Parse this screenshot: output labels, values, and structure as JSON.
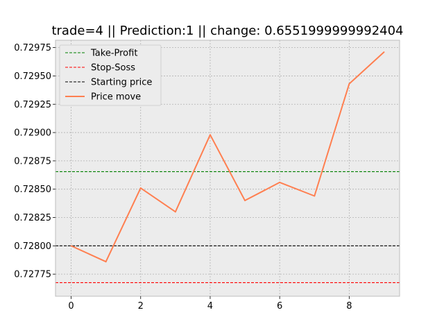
{
  "chart_data": {
    "type": "line",
    "title": "trade=4 || Prediction:1 || change: 0.6551999999992404",
    "xlabel": "",
    "ylabel": "",
    "xlim": [
      -0.45,
      9.45
    ],
    "ylim": [
      0.727555,
      0.729815
    ],
    "xticks": [
      0,
      2,
      4,
      6,
      8
    ],
    "xtick_labels": [
      "0",
      "2",
      "4",
      "6",
      "8"
    ],
    "yticks": [
      0.72775,
      0.728,
      0.72825,
      0.7285,
      0.72875,
      0.729,
      0.72925,
      0.7295,
      0.72975
    ],
    "ytick_labels": [
      "0.72775",
      "0.72800",
      "0.72825",
      "0.72850",
      "0.72875",
      "0.72900",
      "0.72925",
      "0.72950",
      "0.72975"
    ],
    "grid": true,
    "legend_position": "upper-left",
    "hlines": [
      {
        "name": "Take-Profit",
        "y": 0.728655,
        "color": "#008000",
        "style": "dashed"
      },
      {
        "name": "Stop-Soss",
        "y": 0.727675,
        "color": "#ff0000",
        "style": "dashed"
      },
      {
        "name": "Starting price",
        "y": 0.728,
        "color": "#000000",
        "style": "dashed"
      }
    ],
    "series": [
      {
        "name": "Price move",
        "color": "#ff7f50",
        "x": [
          0,
          1,
          2,
          3,
          4,
          5,
          6,
          7,
          8,
          9
        ],
        "values": [
          0.728,
          0.72786,
          0.72851,
          0.7283,
          0.72898,
          0.7284,
          0.72856,
          0.72844,
          0.72943,
          0.72971
        ]
      }
    ]
  }
}
